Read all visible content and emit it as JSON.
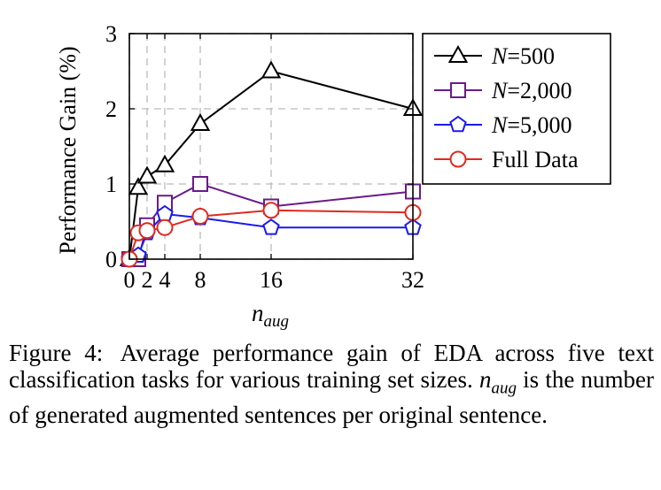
{
  "chart_data": {
    "type": "line",
    "title": "",
    "xlabel_base": "n",
    "xlabel_sub": "aug",
    "ylabel": "Performance Gain (%)",
    "x_ticks": [
      0,
      2,
      4,
      8,
      16,
      32
    ],
    "y_ticks": [
      0,
      1,
      2,
      3
    ],
    "xlim": [
      0,
      32
    ],
    "ylim": [
      0,
      3
    ],
    "grid": "dashed, at x ticks and y ticks",
    "legend_position": "outside-right",
    "series": [
      {
        "name": "N=500",
        "legend_name": "N",
        "legend_value": "=500",
        "color": "#000000",
        "marker": "triangle",
        "x": [
          0,
          1,
          2,
          4,
          8,
          16,
          32
        ],
        "y": [
          0,
          0.95,
          1.1,
          1.25,
          1.8,
          2.5,
          2.0
        ]
      },
      {
        "name": "N=2,000",
        "legend_name": "N",
        "legend_value": "=2,000",
        "color": "#6a1b8a",
        "marker": "square",
        "x": [
          0,
          1,
          2,
          4,
          8,
          16,
          32
        ],
        "y": [
          0,
          0.0,
          0.45,
          0.75,
          1.0,
          0.7,
          0.9
        ]
      },
      {
        "name": "N=5,000",
        "legend_name": "N",
        "legend_value": "=5,000",
        "color": "#1a1aee",
        "marker": "pentagon",
        "x": [
          0,
          1,
          2,
          4,
          8,
          16,
          32
        ],
        "y": [
          0,
          0.05,
          0.35,
          0.6,
          0.55,
          0.42,
          0.42
        ]
      },
      {
        "name": "Full Data",
        "legend_name": "Full Data",
        "legend_value": "",
        "color": "#e02a1f",
        "marker": "circle",
        "x": [
          0,
          1,
          2,
          4,
          8,
          16,
          32
        ],
        "y": [
          0,
          0.35,
          0.38,
          0.42,
          0.57,
          0.65,
          0.62
        ]
      }
    ]
  },
  "caption": {
    "label": "Figure 4:",
    "text_1": "Average performance gain of EDA across five text classification tasks for various training set sizes.",
    "n_base": "n",
    "n_sub": "aug",
    "text_2": "is the number of generated augmented sentences per original sentence."
  }
}
